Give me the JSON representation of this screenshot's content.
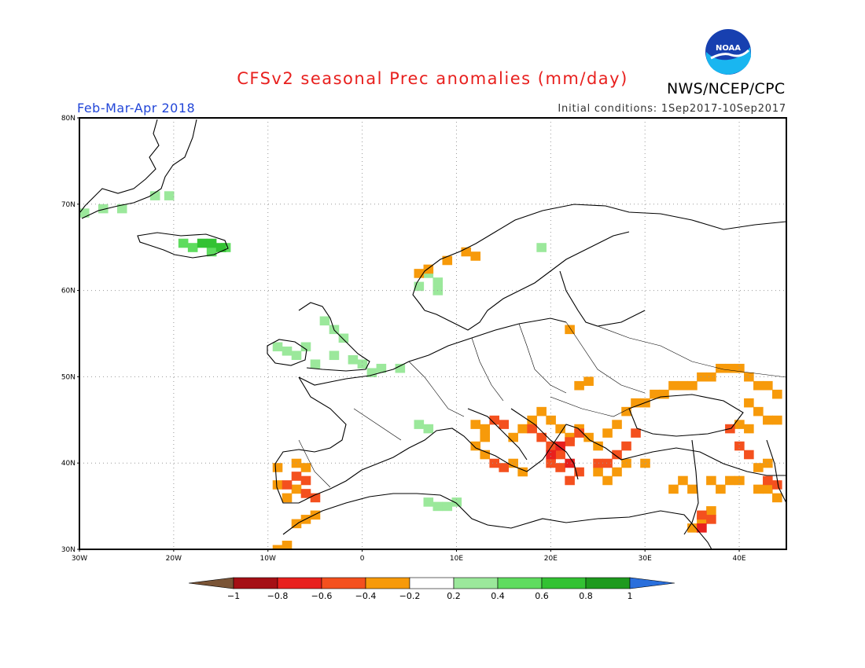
{
  "title": "CFSv2 seasonal Prec anomalies (mm/day)",
  "period": "Feb-Mar-Apr 2018",
  "initial_conditions": "Initial conditions: 1Sep2017-10Sep2017",
  "organization": "NWS/NCEP/CPC",
  "logo_text": "NOAA",
  "axes": {
    "lat_ticks": [
      "80N",
      "70N",
      "60N",
      "50N",
      "40N",
      "30N"
    ],
    "lon_ticks": [
      "30W",
      "20W",
      "10W",
      "0",
      "10E",
      "20E",
      "30E",
      "40E"
    ],
    "lat_range": [
      30,
      80
    ],
    "lon_range": [
      -30,
      45
    ]
  },
  "colorbar": {
    "labels": [
      "-1",
      "-0.8",
      "-0.6",
      "-0.4",
      "-0.2",
      "0.2",
      "0.4",
      "0.6",
      "0.8",
      "1"
    ],
    "below_color": "#7a5436",
    "above_color": "#2a6fdc",
    "colors": [
      "#a50f15",
      "#e8201e",
      "#f4501e",
      "#f79a0a",
      "#ffffff",
      "#9be89b",
      "#5fdc5f",
      "#33c233",
      "#1e9a1e"
    ]
  },
  "legend_levels": {
    "orange": "-0.4 to -0.2",
    "red": "-0.6 to -0.4",
    "darkred": "-0.8 to -0.6",
    "lgreen": "0.2 to 0.4",
    "mgreen": "0.4 to 0.6",
    "dgreen": "0.6 to 0.8"
  },
  "anomaly_regions": [
    {
      "level": "lgreen",
      "cells": [
        [
          -29.5,
          69
        ],
        [
          -27.5,
          69.5
        ],
        [
          -25.5,
          69.5
        ],
        [
          -22,
          71
        ],
        [
          -20.5,
          71
        ]
      ]
    },
    {
      "level": "mgreen",
      "cells": [
        [
          -19,
          65.5
        ],
        [
          -18,
          65
        ],
        [
          -16,
          64.5
        ],
        [
          -14.5,
          65
        ]
      ]
    },
    {
      "level": "dgreen",
      "cells": [
        [
          -17,
          65.5
        ],
        [
          -16,
          65.5
        ],
        [
          -15,
          65
        ]
      ]
    },
    {
      "level": "lgreen",
      "cells": [
        [
          -9,
          53.5
        ],
        [
          -8,
          53
        ],
        [
          -7,
          52.5
        ],
        [
          -6,
          53.5
        ],
        [
          -4,
          56.5
        ],
        [
          -3,
          55.5
        ],
        [
          -2,
          54.5
        ],
        [
          -3,
          52.5
        ],
        [
          -1,
          52
        ],
        [
          -5,
          51.5
        ],
        [
          0,
          51.5
        ],
        [
          2,
          51
        ],
        [
          4,
          51
        ],
        [
          1,
          50.5
        ]
      ]
    },
    {
      "level": "lgreen",
      "cells": [
        [
          7,
          62
        ],
        [
          8,
          61
        ],
        [
          6,
          60.5
        ],
        [
          8,
          60
        ],
        [
          19,
          65
        ]
      ]
    },
    {
      "level": "lgreen",
      "cells": [
        [
          6,
          44.5
        ],
        [
          7,
          44
        ],
        [
          7,
          35.5
        ],
        [
          8,
          35
        ],
        [
          10,
          35.5
        ],
        [
          9,
          35
        ]
      ]
    },
    {
      "level": "orange",
      "cells": [
        [
          7,
          62.5
        ],
        [
          9,
          63.5
        ],
        [
          11,
          64.5
        ],
        [
          12,
          64
        ],
        [
          6,
          62
        ]
      ]
    },
    {
      "level": "orange",
      "cells": [
        [
          22,
          55.5
        ],
        [
          23,
          49
        ],
        [
          24,
          49.5
        ]
      ]
    },
    {
      "level": "orange",
      "cells": [
        [
          -9,
          39.5
        ],
        [
          -7,
          40
        ],
        [
          -6,
          39.5
        ],
        [
          -9,
          37.5
        ],
        [
          -7,
          37
        ],
        [
          -8,
          36
        ],
        [
          -5,
          34
        ],
        [
          -6,
          33.5
        ],
        [
          -7,
          33
        ],
        [
          -8,
          30.5
        ],
        [
          -9,
          30
        ]
      ]
    },
    {
      "level": "orange",
      "cells": [
        [
          12,
          44.5
        ],
        [
          13,
          44
        ],
        [
          13,
          43
        ],
        [
          12,
          42
        ],
        [
          13,
          41
        ],
        [
          16,
          43
        ],
        [
          17,
          44
        ],
        [
          18,
          45
        ],
        [
          19,
          46
        ],
        [
          20,
          45
        ],
        [
          21,
          44
        ],
        [
          22,
          43
        ],
        [
          23,
          44
        ],
        [
          24,
          43
        ],
        [
          25,
          42
        ],
        [
          26,
          43.5
        ],
        [
          27,
          44.5
        ],
        [
          28,
          46
        ],
        [
          29,
          47
        ],
        [
          30,
          47
        ],
        [
          31,
          48
        ],
        [
          32,
          48
        ],
        [
          33,
          49
        ],
        [
          34,
          49
        ],
        [
          35,
          49
        ],
        [
          36,
          50
        ],
        [
          37,
          50
        ],
        [
          38,
          51
        ],
        [
          39,
          51
        ],
        [
          40,
          51
        ],
        [
          41,
          50
        ],
        [
          42,
          49
        ],
        [
          43,
          49
        ],
        [
          44,
          48
        ],
        [
          41,
          47
        ],
        [
          42,
          46
        ],
        [
          43,
          45
        ],
        [
          44,
          45
        ],
        [
          40,
          44.5
        ],
        [
          41,
          44
        ],
        [
          16,
          40
        ],
        [
          17,
          39
        ],
        [
          25,
          39
        ],
        [
          26,
          38
        ],
        [
          27,
          39
        ],
        [
          28,
          40
        ],
        [
          30,
          40
        ],
        [
          33,
          37
        ],
        [
          34,
          38
        ],
        [
          35,
          37
        ],
        [
          37,
          38
        ],
        [
          38,
          37
        ],
        [
          39,
          38
        ],
        [
          40,
          38
        ],
        [
          42,
          37
        ],
        [
          43,
          37
        ],
        [
          44,
          36
        ],
        [
          37,
          34.5
        ],
        [
          36,
          33.5
        ],
        [
          35,
          32.5
        ],
        [
          42,
          39.5
        ],
        [
          43,
          40
        ]
      ]
    },
    {
      "level": "red",
      "cells": [
        [
          14,
          45
        ],
        [
          15,
          44.5
        ],
        [
          14,
          40
        ],
        [
          15,
          39.5
        ],
        [
          18,
          44
        ],
        [
          19,
          43
        ],
        [
          20,
          42
        ],
        [
          21,
          41
        ],
        [
          20,
          40
        ],
        [
          21,
          39.5
        ],
        [
          22,
          38
        ],
        [
          23,
          39
        ],
        [
          22,
          42.5
        ],
        [
          23,
          43.5
        ],
        [
          25,
          40
        ],
        [
          26,
          40
        ],
        [
          27,
          41
        ],
        [
          28,
          42
        ],
        [
          29,
          43.5
        ],
        [
          39,
          44
        ],
        [
          40,
          42
        ],
        [
          41,
          41
        ],
        [
          44,
          37.5
        ],
        [
          43,
          38
        ],
        [
          37,
          33.5
        ],
        [
          36,
          34
        ]
      ]
    },
    {
      "level": "darkred",
      "cells": [
        [
          20,
          41
        ],
        [
          21,
          42
        ],
        [
          22,
          40
        ],
        [
          36,
          32.5
        ]
      ]
    },
    {
      "level": "red",
      "cells": [
        [
          -7,
          38.5
        ],
        [
          -6,
          38
        ],
        [
          -8,
          37.5
        ],
        [
          -6,
          36.5
        ],
        [
          -5,
          36
        ]
      ]
    }
  ]
}
